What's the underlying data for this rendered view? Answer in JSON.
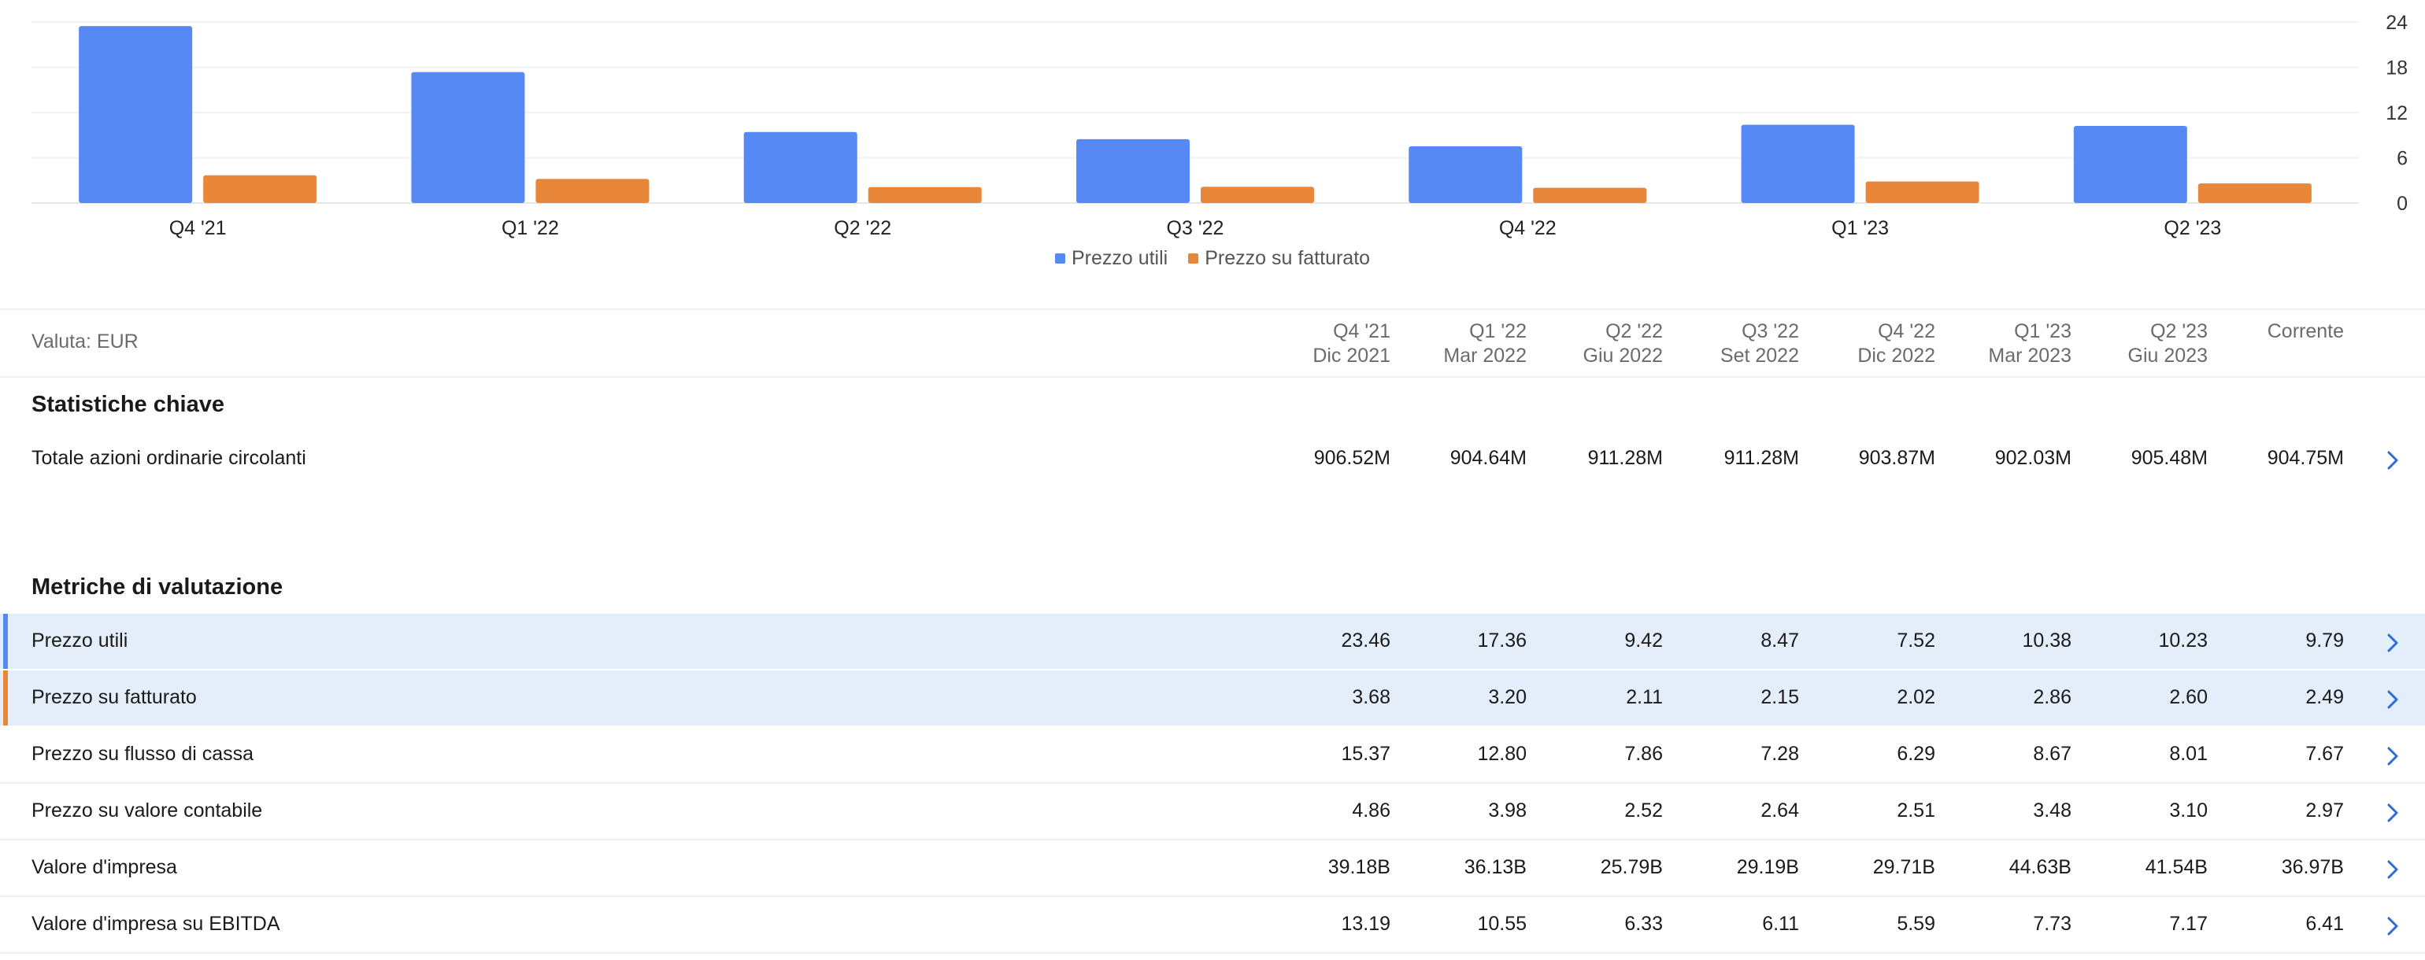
{
  "chart_data": {
    "type": "bar",
    "categories": [
      "Q4 '21",
      "Q1 '22",
      "Q2 '22",
      "Q3 '22",
      "Q4 '22",
      "Q1 '23",
      "Q2 '23"
    ],
    "series": [
      {
        "name": "Prezzo utili",
        "color": "#5789f5",
        "values": [
          23.46,
          17.36,
          9.42,
          8.47,
          7.52,
          10.38,
          10.23
        ]
      },
      {
        "name": "Prezzo su fatturato",
        "color": "#e8873a",
        "values": [
          3.68,
          3.2,
          2.11,
          2.15,
          2.02,
          2.86,
          2.6
        ]
      }
    ],
    "yticks": [
      "0",
      "6",
      "12",
      "18",
      "24"
    ],
    "ylim": [
      0,
      24
    ],
    "grid": true,
    "legend_position": "bottom-center"
  },
  "table": {
    "currency_label": "Valuta: EUR",
    "columns": [
      {
        "quarter": "Q4 '21",
        "date": "Dic 2021"
      },
      {
        "quarter": "Q1 '22",
        "date": "Mar 2022"
      },
      {
        "quarter": "Q2 '22",
        "date": "Giu 2022"
      },
      {
        "quarter": "Q3 '22",
        "date": "Set 2022"
      },
      {
        "quarter": "Q4 '22",
        "date": "Dic 2022"
      },
      {
        "quarter": "Q1 '23",
        "date": "Mar 2023"
      },
      {
        "quarter": "Q2 '23",
        "date": "Giu 2023"
      },
      {
        "quarter": "Corrente",
        "date": ""
      }
    ],
    "key_stats_title": "Statistiche chiave",
    "key_stats": [
      {
        "label": "Totale azioni ordinarie circolanti",
        "values": [
          "906.52M",
          "904.64M",
          "911.28M",
          "911.28M",
          "903.87M",
          "902.03M",
          "905.48M",
          "904.75M"
        ]
      }
    ],
    "valuation_title": "Metriche di valutazione",
    "valuation": [
      {
        "label": "Prezzo utili",
        "values": [
          "23.46",
          "17.36",
          "9.42",
          "8.47",
          "7.52",
          "10.38",
          "10.23",
          "9.79"
        ],
        "highlighted": true,
        "accent_color": "#5789f5"
      },
      {
        "label": "Prezzo su fatturato",
        "values": [
          "3.68",
          "3.20",
          "2.11",
          "2.15",
          "2.02",
          "2.86",
          "2.60",
          "2.49"
        ],
        "highlighted": true,
        "accent_color": "#e8873a"
      },
      {
        "label": "Prezzo su flusso di cassa",
        "values": [
          "15.37",
          "12.80",
          "7.86",
          "7.28",
          "6.29",
          "8.67",
          "8.01",
          "7.67"
        ],
        "highlighted": false
      },
      {
        "label": "Prezzo su valore contabile",
        "values": [
          "4.86",
          "3.98",
          "2.52",
          "2.64",
          "2.51",
          "3.48",
          "3.10",
          "2.97"
        ],
        "highlighted": false
      },
      {
        "label": "Valore d'impresa",
        "values": [
          "39.18B",
          "36.13B",
          "25.79B",
          "29.19B",
          "29.71B",
          "44.63B",
          "41.54B",
          "36.97B"
        ],
        "highlighted": false
      },
      {
        "label": "Valore d'impresa su EBITDA",
        "values": [
          "13.19",
          "10.55",
          "6.33",
          "6.11",
          "5.59",
          "7.73",
          "7.17",
          "6.41"
        ],
        "highlighted": false
      }
    ],
    "row_action_icon": "chevron-right-icon",
    "chevron_color": "#2f6bd8"
  }
}
